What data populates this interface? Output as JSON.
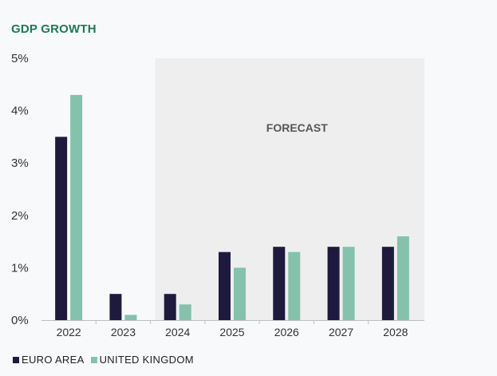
{
  "colors": {
    "title": "#1d7a55",
    "euro": "#1e1a3d",
    "uk": "#84c2ac",
    "forecast_bg": "#eeeeef",
    "axis": "#bfbfbf",
    "tick_text": "#333333",
    "forecast_text": "#555555"
  },
  "chart_data": {
    "type": "bar",
    "title": "GDP GROWTH",
    "categories": [
      "2022",
      "2023",
      "2024",
      "2025",
      "2026",
      "2027",
      "2028"
    ],
    "series": [
      {
        "name": "EURO AREA",
        "values": [
          3.5,
          0.5,
          0.5,
          1.3,
          1.4,
          1.4,
          1.4
        ]
      },
      {
        "name": "UNITED KINGDOM",
        "values": [
          4.3,
          0.1,
          0.3,
          1.0,
          1.3,
          1.4,
          1.6
        ]
      }
    ],
    "ylim": [
      0,
      5
    ],
    "yticks": [
      0,
      1,
      2,
      3,
      4,
      5
    ],
    "ytick_labels": [
      "0%",
      "1%",
      "2%",
      "3%",
      "4%",
      "5%"
    ],
    "forecast_label": "FORECAST",
    "forecast_from": "2024",
    "legend_position": "bottom-left",
    "xlabel": "",
    "ylabel": ""
  }
}
